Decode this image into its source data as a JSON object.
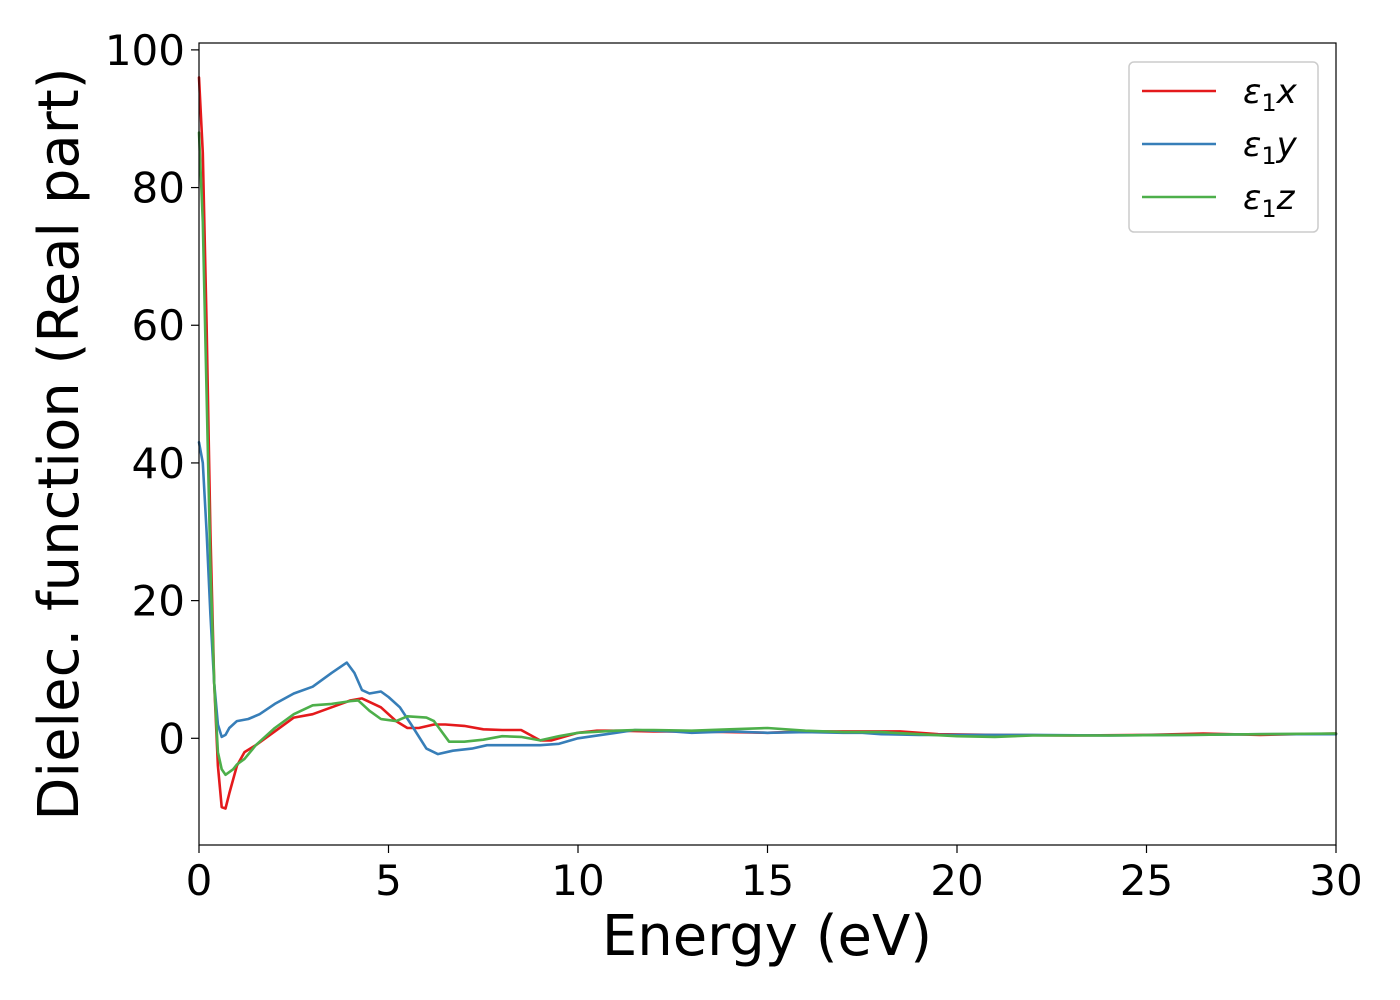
{
  "chart_data": {
    "type": "line",
    "xlabel": "Energy (eV)",
    "ylabel": "Dielec. function (Real part)",
    "xlim": [
      0,
      30
    ],
    "ylim": [
      -15.5,
      101
    ],
    "x_ticks": [
      0,
      5,
      10,
      15,
      20,
      25,
      30
    ],
    "y_ticks": [
      0,
      20,
      40,
      60,
      80,
      100
    ],
    "grid": false,
    "legend_position": "top-right",
    "series": [
      {
        "name_base": "ε",
        "name_sub": "1",
        "name_var": "x",
        "color": "#e41a1c",
        "points": [
          [
            0,
            96
          ],
          [
            0.1,
            85
          ],
          [
            0.2,
            60
          ],
          [
            0.3,
            30
          ],
          [
            0.4,
            8
          ],
          [
            0.5,
            -4
          ],
          [
            0.6,
            -10
          ],
          [
            0.7,
            -10.2
          ],
          [
            0.8,
            -8
          ],
          [
            1.0,
            -4
          ],
          [
            1.2,
            -2
          ],
          [
            1.5,
            -1
          ],
          [
            2.0,
            1
          ],
          [
            2.5,
            3
          ],
          [
            3.0,
            3.5
          ],
          [
            3.5,
            4.5
          ],
          [
            4.0,
            5.5
          ],
          [
            4.3,
            5.8
          ],
          [
            4.8,
            4.5
          ],
          [
            5.2,
            2.5
          ],
          [
            5.5,
            1.5
          ],
          [
            5.8,
            1.5
          ],
          [
            6.2,
            2
          ],
          [
            6.5,
            2
          ],
          [
            7.0,
            1.8
          ],
          [
            7.5,
            1.3
          ],
          [
            8.0,
            1.2
          ],
          [
            8.5,
            1.2
          ],
          [
            9.0,
            -0.3
          ],
          [
            9.3,
            -0.3
          ],
          [
            10.0,
            0.8
          ],
          [
            10.5,
            1.1
          ],
          [
            11.0,
            1.1
          ],
          [
            12.0,
            1
          ],
          [
            13.0,
            1
          ],
          [
            14.0,
            0.9
          ],
          [
            15.0,
            0.8
          ],
          [
            16.0,
            1
          ],
          [
            17.0,
            1
          ],
          [
            18.0,
            1
          ],
          [
            18.5,
            1
          ],
          [
            19.5,
            0.6
          ],
          [
            21.0,
            0.5
          ],
          [
            23.0,
            0.4
          ],
          [
            25.0,
            0.5
          ],
          [
            26.5,
            0.7
          ],
          [
            28.0,
            0.5
          ],
          [
            30.0,
            0.7
          ]
        ]
      },
      {
        "name_base": "ε",
        "name_sub": "1",
        "name_var": "y",
        "color": "#377eb8",
        "points": [
          [
            0,
            43
          ],
          [
            0.1,
            40
          ],
          [
            0.2,
            30
          ],
          [
            0.3,
            18
          ],
          [
            0.4,
            8
          ],
          [
            0.5,
            2
          ],
          [
            0.6,
            0.2
          ],
          [
            0.7,
            0.5
          ],
          [
            0.8,
            1.5
          ],
          [
            1.0,
            2.5
          ],
          [
            1.3,
            2.8
          ],
          [
            1.6,
            3.5
          ],
          [
            2.0,
            5
          ],
          [
            2.5,
            6.5
          ],
          [
            3.0,
            7.5
          ],
          [
            3.5,
            9.5
          ],
          [
            3.9,
            11
          ],
          [
            4.1,
            9.5
          ],
          [
            4.3,
            7
          ],
          [
            4.5,
            6.5
          ],
          [
            4.8,
            6.8
          ],
          [
            5.0,
            6
          ],
          [
            5.3,
            4.5
          ],
          [
            5.6,
            2
          ],
          [
            6.0,
            -1.5
          ],
          [
            6.3,
            -2.3
          ],
          [
            6.7,
            -1.8
          ],
          [
            7.2,
            -1.5
          ],
          [
            7.6,
            -1
          ],
          [
            8.0,
            -1
          ],
          [
            9.0,
            -1
          ],
          [
            9.5,
            -0.8
          ],
          [
            10.0,
            0
          ],
          [
            11.0,
            0.8
          ],
          [
            11.5,
            1.2
          ],
          [
            12.0,
            1.1
          ],
          [
            12.5,
            1
          ],
          [
            13.0,
            0.8
          ],
          [
            14.0,
            1
          ],
          [
            15.0,
            0.8
          ],
          [
            16.0,
            0.9
          ],
          [
            17.0,
            0.8
          ],
          [
            17.5,
            0.8
          ],
          [
            18.0,
            0.6
          ],
          [
            19.0,
            0.5
          ],
          [
            20.0,
            0.5
          ],
          [
            22.0,
            0.5
          ],
          [
            24.0,
            0.4
          ],
          [
            26.0,
            0.5
          ],
          [
            28.0,
            0.6
          ],
          [
            30.0,
            0.6
          ]
        ]
      },
      {
        "name_base": "ε",
        "name_sub": "1",
        "name_var": "z",
        "color": "#4daf4a",
        "points": [
          [
            0,
            88
          ],
          [
            0.1,
            75
          ],
          [
            0.2,
            50
          ],
          [
            0.3,
            25
          ],
          [
            0.4,
            8
          ],
          [
            0.5,
            -2
          ],
          [
            0.6,
            -4.5
          ],
          [
            0.7,
            -5.3
          ],
          [
            0.9,
            -4.5
          ],
          [
            1.0,
            -3.8
          ],
          [
            1.2,
            -3
          ],
          [
            1.5,
            -1
          ],
          [
            2.0,
            1.5
          ],
          [
            2.5,
            3.5
          ],
          [
            3.0,
            4.8
          ],
          [
            3.5,
            5
          ],
          [
            4.0,
            5.4
          ],
          [
            4.2,
            5.5
          ],
          [
            4.5,
            4
          ],
          [
            4.8,
            2.8
          ],
          [
            5.2,
            2.5
          ],
          [
            5.5,
            3.2
          ],
          [
            6.0,
            3
          ],
          [
            6.2,
            2.5
          ],
          [
            6.6,
            -0.5
          ],
          [
            7.0,
            -0.5
          ],
          [
            7.5,
            -0.2
          ],
          [
            8.0,
            0.3
          ],
          [
            8.5,
            0.2
          ],
          [
            9.0,
            -0.3
          ],
          [
            9.5,
            0.3
          ],
          [
            10.0,
            0.8
          ],
          [
            11.0,
            1.1
          ],
          [
            11.5,
            1.2
          ],
          [
            12.0,
            1.2
          ],
          [
            13.0,
            1.1
          ],
          [
            14.0,
            1.3
          ],
          [
            15.0,
            1.5
          ],
          [
            16.0,
            1.1
          ],
          [
            17.0,
            0.9
          ],
          [
            18.0,
            0.9
          ],
          [
            19.0,
            0.6
          ],
          [
            20.0,
            0.3
          ],
          [
            21.0,
            0.2
          ],
          [
            22.0,
            0.4
          ],
          [
            24.0,
            0.4
          ],
          [
            26.0,
            0.5
          ],
          [
            28.0,
            0.6
          ],
          [
            30.0,
            0.7
          ]
        ]
      }
    ]
  }
}
